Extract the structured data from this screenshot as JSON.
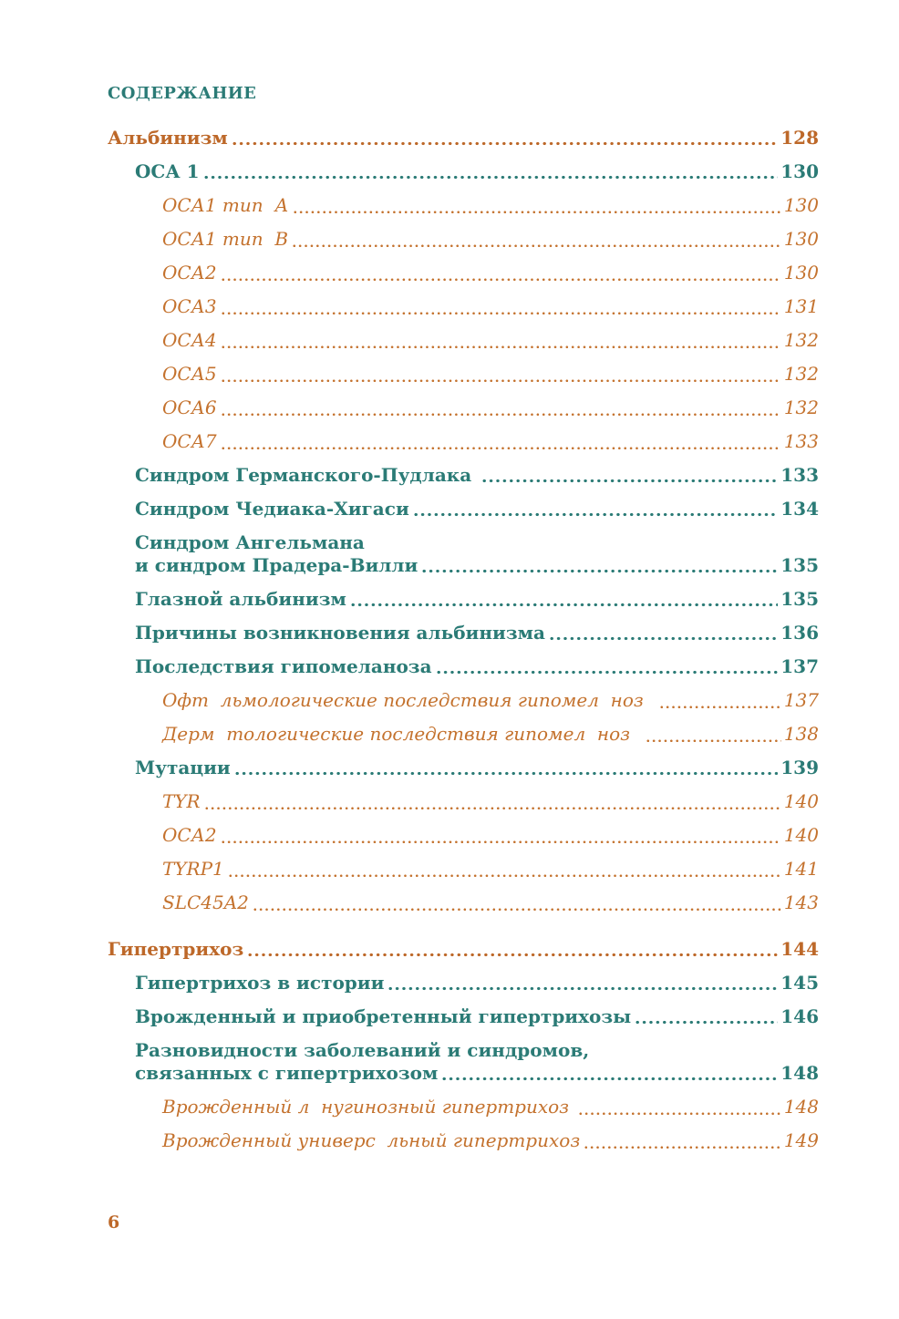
{
  "colors": {
    "heading_teal": "#2B7B76",
    "part_orange": "#BD6829",
    "sub_orange": "#C4722E",
    "background": "#FFFFFF"
  },
  "toc": {
    "header": "СОДЕРЖАНИЕ",
    "entries": [
      {
        "label": "Альбинизм",
        "page": "128",
        "level": 1,
        "style": "part"
      },
      {
        "label": "ОСА 1",
        "page": "130",
        "level": 2,
        "style": "section"
      },
      {
        "label": "ОСА1 тип  А",
        "page": "130",
        "level": 3,
        "style": "sub"
      },
      {
        "label": "ОСА1 тип  В",
        "page": "130",
        "level": 3,
        "style": "sub"
      },
      {
        "label": "ОСА2",
        "page": "130",
        "level": 3,
        "style": "sub"
      },
      {
        "label": "ОСА3",
        "page": "131",
        "level": 3,
        "style": "sub"
      },
      {
        "label": "ОСА4",
        "page": "132",
        "level": 3,
        "style": "sub"
      },
      {
        "label": "ОСА5",
        "page": "132",
        "level": 3,
        "style": "sub"
      },
      {
        "label": "ОСА6",
        "page": "132",
        "level": 3,
        "style": "sub"
      },
      {
        "label": "ОСА7",
        "page": "133",
        "level": 3,
        "style": "sub"
      },
      {
        "label": "Синдром Германского-Пудлака ",
        "page": "133",
        "level": 2,
        "style": "section"
      },
      {
        "label": "Синдром Чедиака-Хигаси",
        "page": "134",
        "level": 2,
        "style": "section"
      },
      {
        "label": "Синдром Ангельмана\nи синдром Прадера-Вилли",
        "page": "135",
        "level": 2,
        "style": "section"
      },
      {
        "label": "Глазной альбинизм",
        "page": "135",
        "level": 2,
        "style": "section"
      },
      {
        "label": "Причины возникновения альбинизма",
        "page": "136",
        "level": 2,
        "style": "section"
      },
      {
        "label": "Последствия гипомеланоза",
        "page": "137",
        "level": 2,
        "style": "section"
      },
      {
        "label": "Офт  льмологические последствия гипомел  ноз  ",
        "page": "137",
        "level": 3,
        "style": "sub"
      },
      {
        "label": "Дерм  тологические последствия гипомел  ноз  ",
        "page": "138",
        "level": 3,
        "style": "sub"
      },
      {
        "label": "Мутации",
        "page": "139",
        "level": 2,
        "style": "section"
      },
      {
        "label": "TYR",
        "page": "140",
        "level": 3,
        "style": "sub"
      },
      {
        "label": "ОСА2",
        "page": "140",
        "level": 3,
        "style": "sub"
      },
      {
        "label": "TYRP1",
        "page": "141",
        "level": 3,
        "style": "sub"
      },
      {
        "label": "SLC45A2",
        "page": "143",
        "level": 3,
        "style": "sub"
      },
      {
        "label": "Гипертрихоз",
        "page": "144",
        "level": 1,
        "style": "part",
        "gap_before": true
      },
      {
        "label": "Гипертрихоз в истории",
        "page": "145",
        "level": 2,
        "style": "section"
      },
      {
        "label": "Врожденный и приобретенный гипертрихозы",
        "page": "146",
        "level": 2,
        "style": "section"
      },
      {
        "label": "Разновидности заболеваний и синдромов,\nсвязанных с гипертрихозом",
        "page": "148",
        "level": 2,
        "style": "section"
      },
      {
        "label": "Врожденный л  нугинозный гипертрихоз ",
        "page": "148",
        "level": 3,
        "style": "sub"
      },
      {
        "label": "Врожденный универс  льный гипертрихоз",
        "page": "149",
        "level": 3,
        "style": "sub"
      }
    ]
  },
  "footer": {
    "page_number": "6"
  }
}
